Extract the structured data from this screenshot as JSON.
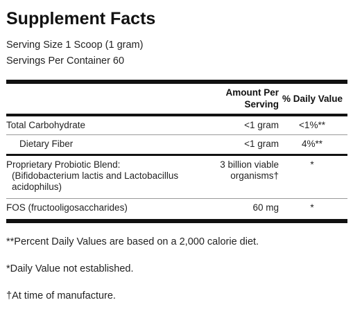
{
  "title": "Supplement Facts",
  "serving_size": "Serving Size 1 Scoop (1 gram)",
  "servings_per_container": "Servings Per Container 60",
  "header": {
    "amount_line1": "Amount Per",
    "amount_line2": "Serving",
    "daily_value": "% Daily Value"
  },
  "rows": [
    {
      "name": "Total Carbohydrate",
      "amount": "<1 gram",
      "dv": "<1%**"
    },
    {
      "name": "Dietary Fiber",
      "amount": "<1 gram",
      "dv": "4%**"
    },
    {
      "name_lines": [
        "Proprietary Probiotic Blend:",
        "(Bifidobacterium lactis and Lactobacillus",
        "acidophilus)"
      ],
      "amount_lines": [
        "3 billion viable",
        "organisms†"
      ],
      "dv": "*"
    },
    {
      "name": "FOS (fructooligosaccharides)",
      "amount": "60 mg",
      "dv": "*"
    }
  ],
  "footnotes": [
    "**Percent Daily Values are based on a 2,000 calorie diet.",
    "*Daily Value not established.",
    "†At time of manufacture."
  ]
}
